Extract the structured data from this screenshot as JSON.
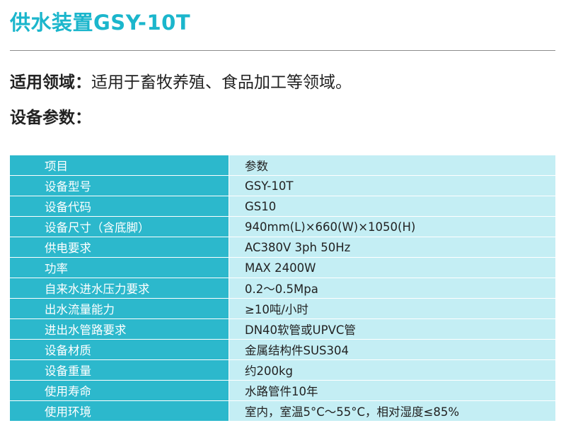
{
  "title": "供水装置GSY-10T",
  "application": {
    "label": "适用领域：",
    "value": "适用于畜牧养殖、食品加工等领域。"
  },
  "params_heading": "设备参数：",
  "table": {
    "header": {
      "name": "项目",
      "value": "参数"
    },
    "rows": [
      {
        "name": "设备型号",
        "value": "GSY-10T"
      },
      {
        "name": "设备代码",
        "value": "GS10"
      },
      {
        "name": "设备尺寸（含底脚）",
        "value": "940mm(L)×660(W)×1050(H)"
      },
      {
        "name": "供电要求",
        "value": "AC380V 3ph 50Hz"
      },
      {
        "name": "功率",
        "value": "MAX 2400W"
      },
      {
        "name": "自来水进水压力要求",
        "value": "0.2～0.5Mpa"
      },
      {
        "name": "出水流量能力",
        "value": "≥10吨/小时"
      },
      {
        "name": "进出水管路要求",
        "value": "DN40软管或UPVC管"
      },
      {
        "name": "设备材质",
        "value": "金属结构件SUS304"
      },
      {
        "name": "设备重量",
        "value": "约200kg"
      },
      {
        "name": "使用寿命",
        "value": "水路管件10年"
      },
      {
        "name": "使用环境",
        "value": "室内，室温5°C～55°C，相对湿度≤85%"
      }
    ]
  }
}
